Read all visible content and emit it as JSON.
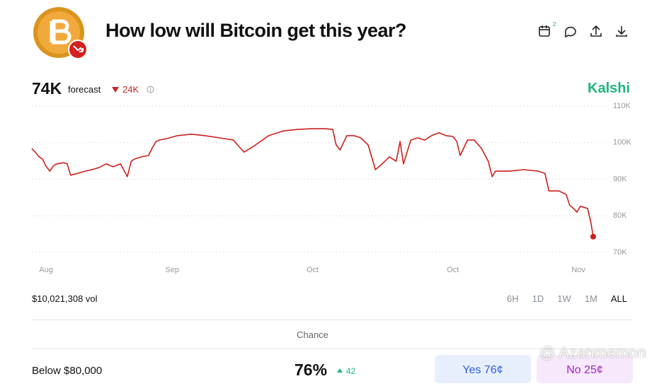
{
  "header": {
    "title": "How low will Bitcoin get this year?",
    "forecast_value": "74K",
    "forecast_label": "forecast",
    "change": "24K",
    "brand": "Kalshi",
    "calendar_badge": "2"
  },
  "chart_data": {
    "type": "line",
    "x": [
      0,
      0.6,
      1.3,
      1.9,
      2.5,
      3.2,
      3.8,
      4.4,
      5.7,
      6.3,
      6.9,
      8.2,
      9.5,
      10.7,
      12.0,
      13.2,
      14.5,
      15.8,
      17.0,
      17.7,
      18.3,
      19.5,
      20.8,
      21.4,
      22.1,
      22.7,
      24.0,
      25.9,
      28.4,
      30.9,
      33.4,
      35.9,
      37.2,
      37.8,
      39.7,
      42.2,
      44.8,
      47.3,
      49.8,
      52.3,
      53.6,
      54.2,
      54.9,
      56.1,
      57.4,
      58.6,
      59.9,
      61.2,
      62.4,
      63.7,
      64.9,
      65.6,
      66.2,
      67.5,
      68.7,
      70.0,
      71.2,
      72.5,
      73.8,
      75.0,
      75.7,
      76.3,
      77.6,
      78.8,
      80.1,
      81.3,
      82.0,
      82.6,
      85.1,
      87.6,
      90.2,
      91.4,
      92.1,
      92.7,
      93.9,
      95.2,
      95.8,
      96.5,
      97.1,
      97.7,
      99.0,
      99.6,
      100
    ],
    "series": [
      {
        "name": "Bitcoin",
        "color": "#cc1f1a",
        "values": [
          98.4,
          97.4,
          96.1,
          95.5,
          93.6,
          92.2,
          93.6,
          94.2,
          94.5,
          94.2,
          91.1,
          91.6,
          92.2,
          92.6,
          93.2,
          94.2,
          93.4,
          94.2,
          90.7,
          94.9,
          95.5,
          96.1,
          96.5,
          98.4,
          100.3,
          100.7,
          101.1,
          101.9,
          102.3,
          101.9,
          101.3,
          100.7,
          98.4,
          97.4,
          99.2,
          101.9,
          103.2,
          103.6,
          103.8,
          103.8,
          103.6,
          99.4,
          98.0,
          101.9,
          101.9,
          101.3,
          99.4,
          92.6,
          94.2,
          96.1,
          94.9,
          100.3,
          94.2,
          100.7,
          101.3,
          100.7,
          101.9,
          102.7,
          101.9,
          101.7,
          100.3,
          96.5,
          100.7,
          100.7,
          98.4,
          94.9,
          90.7,
          92.2,
          92.2,
          92.6,
          92.2,
          91.6,
          86.8,
          86.8,
          86.8,
          85.8,
          82.9,
          82.0,
          81.0,
          82.6,
          82.0,
          78.1,
          74.3
        ]
      }
    ],
    "xlim": [
      0,
      100
    ],
    "xticks": [
      {
        "value": 1.3,
        "label": "Aug"
      },
      {
        "value": 25,
        "label": "Sep"
      },
      {
        "value": 50,
        "label": "Oct"
      },
      {
        "value": 75,
        "label": "Oct"
      },
      {
        "value": 98.6,
        "label": "Nov"
      }
    ],
    "ylim": [
      70,
      110
    ],
    "yticks": [
      {
        "value": 70,
        "label": "70K"
      },
      {
        "value": 80,
        "label": "80K"
      },
      {
        "value": 90,
        "label": "90K"
      },
      {
        "value": 100,
        "label": "100K"
      },
      {
        "value": 110,
        "label": "110K"
      }
    ],
    "grid": true
  },
  "footer": {
    "volume": "$10,021,308 vol",
    "ranges": [
      "6H",
      "1D",
      "1W",
      "1M",
      "ALL"
    ],
    "active_range": "ALL",
    "chance_header": "Chance"
  },
  "market": {
    "label": "Below $80,000",
    "chance": "76%",
    "delta": "42",
    "yes": "Yes 76¢",
    "no": "No 25¢"
  },
  "watermark": "@ Azanmemon"
}
